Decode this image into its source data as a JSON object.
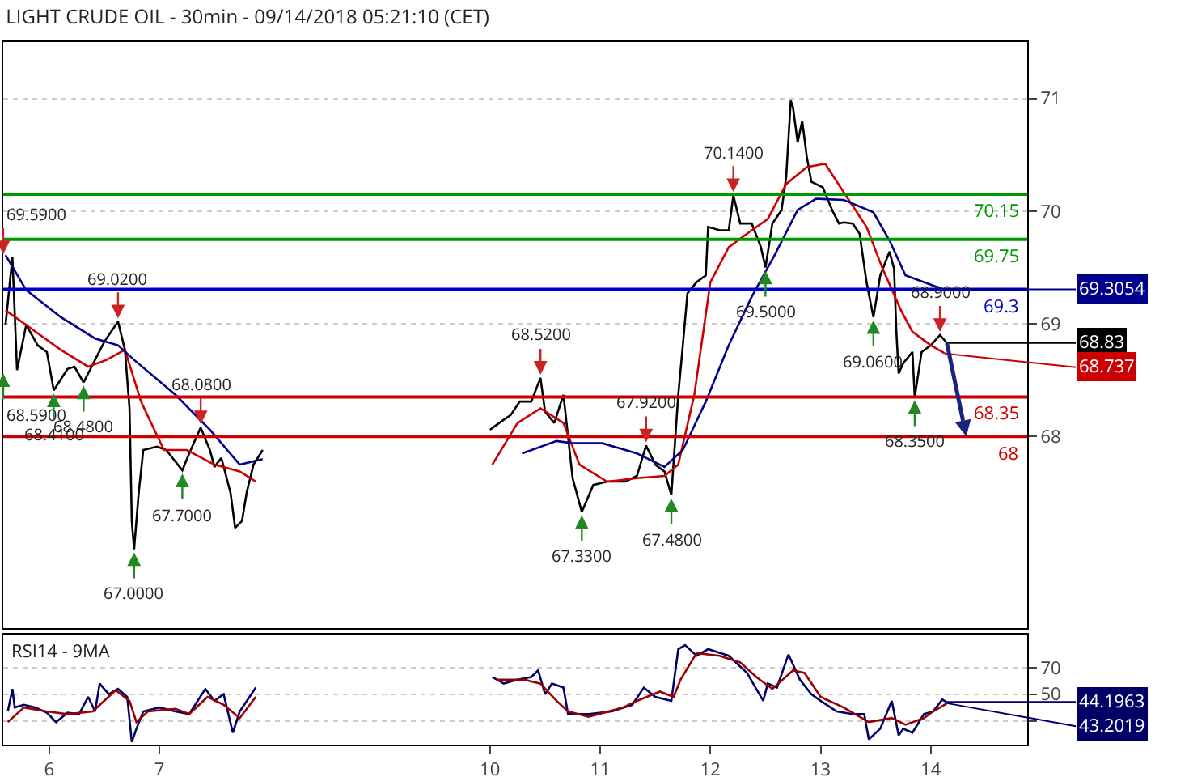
{
  "chart_data": [
    {
      "type": "line",
      "title": "LIGHT CRUDE OIL - 30min - 09/14/2018 05:21:10 (CET)",
      "xlim": [
        "2018-09-05T14:00",
        "2018-09-14T21:00"
      ],
      "ylim": [
        66.3,
        71.5
      ],
      "yticks": [
        68,
        69,
        70,
        71
      ],
      "tick_labels": "y",
      "grid": "y",
      "marker": "none",
      "line_style": "solid",
      "series": [
        {
          "color": "#000000",
          "x": [
            "2018-09-05T14:30",
            "2018-09-05T16:00",
            "2018-09-05T17:00",
            "2018-09-05T19:00",
            "2018-09-05T21:30",
            "2018-09-05T23:30",
            "2018-09-06T01:00",
            "2018-09-06T04:00",
            "2018-09-06T05:30",
            "2018-09-06T07:30",
            "2018-09-06T10:00",
            "2018-09-06T12:00",
            "2018-09-06T15:00",
            "2018-09-06T16:30",
            "2018-09-06T17:30",
            "2018-09-06T18:00",
            "2018-09-06T18:30",
            "2018-09-06T19:30",
            "2018-09-06T20:30",
            "2018-09-06T23:30",
            "2018-09-07T01:30",
            "2018-09-07T05:00",
            "2018-09-07T06:30",
            "2018-09-07T09:00",
            "2018-09-07T11:00",
            "2018-09-07T12:00",
            "2018-09-07T13:30",
            "2018-09-07T15:30",
            "2018-09-07T16:30",
            "2018-09-07T18:00",
            "2018-09-07T19:00",
            "2018-09-07T20:30",
            "2018-09-07T22:30",
            "2018-09-08T12:00",
            "2018-09-10T00:00",
            "2018-09-10T02:00",
            "2018-09-10T04:30",
            "2018-09-10T06:30",
            "2018-09-10T09:00",
            "2018-09-10T11:00",
            "2018-09-10T12:00",
            "2018-09-10T14:00",
            "2018-09-10T16:00",
            "2018-09-10T17:00",
            "2018-09-10T18:00",
            "2018-09-10T20:00",
            "2018-09-10T22:30",
            "2018-09-11T01:30",
            "2018-09-11T05:30",
            "2018-09-11T08:00",
            "2018-09-11T10:00",
            "2018-09-11T12:00",
            "2018-09-11T14:00",
            "2018-09-11T15:30",
            "2018-09-11T17:00",
            "2018-09-11T18:00",
            "2018-09-11T19:00",
            "2018-09-11T21:00",
            "2018-09-11T23:00",
            "2018-09-11T23:30",
            "2018-09-12T02:00",
            "2018-09-12T04:00",
            "2018-09-12T05:00",
            "2018-09-12T06:30",
            "2018-09-12T09:00",
            "2018-09-12T11:00",
            "2018-09-12T12:00",
            "2018-09-12T13:30",
            "2018-09-12T15:30",
            "2018-09-12T16:30",
            "2018-09-12T17:30",
            "2018-09-12T18:00",
            "2018-09-12T19:00",
            "2018-09-12T20:00",
            "2018-09-12T21:00",
            "2018-09-12T22:00",
            "2018-09-12T23:00",
            "2018-09-13T00:30",
            "2018-09-13T02:30",
            "2018-09-13T04:00",
            "2018-09-13T05:00",
            "2018-09-13T07:00",
            "2018-09-13T08:30",
            "2018-09-13T10:00",
            "2018-09-13T11:30",
            "2018-09-13T13:00",
            "2018-09-13T15:00",
            "2018-09-13T16:00",
            "2018-09-13T16:30",
            "2018-09-13T17:00",
            "2018-09-13T18:00",
            "2018-09-13T20:00",
            "2018-09-13T20:30",
            "2018-09-13T22:00",
            "2018-09-14T00:00",
            "2018-09-14T02:00",
            "2018-09-14T03:30"
          ],
          "values": [
            68.99,
            69.59,
            68.59,
            68.99,
            68.81,
            68.75,
            68.41,
            68.6,
            68.62,
            68.48,
            68.68,
            68.84,
            69.02,
            68.77,
            68.25,
            67.25,
            67.0,
            67.5,
            67.88,
            67.91,
            67.88,
            67.7,
            67.85,
            68.08,
            67.88,
            67.73,
            67.81,
            67.5,
            67.19,
            67.25,
            67.5,
            67.75,
            67.88,
            null,
            68.06,
            68.12,
            68.19,
            68.31,
            68.31,
            68.52,
            68.22,
            68.12,
            68.37,
            68.0,
            67.63,
            67.33,
            67.57,
            67.6,
            67.6,
            67.65,
            67.92,
            67.75,
            67.69,
            67.48,
            68.37,
            68.81,
            69.27,
            69.37,
            69.43,
            69.86,
            69.83,
            69.83,
            70.14,
            69.89,
            69.89,
            69.68,
            69.5,
            69.89,
            70.01,
            70.3,
            70.98,
            70.92,
            70.61,
            70.8,
            70.48,
            70.26,
            70.24,
            70.21,
            70.01,
            69.89,
            69.9,
            69.89,
            69.8,
            69.37,
            69.06,
            69.43,
            69.64,
            69.49,
            68.93,
            68.56,
            68.65,
            68.75,
            68.35,
            68.75,
            68.81,
            68.9,
            68.83
          ]
        },
        {
          "color": "#cc0000",
          "x": [
            "2018-09-05T14:30",
            "2018-09-05T19:00",
            "2018-09-06T02:30",
            "2018-09-06T08:30",
            "2018-09-06T12:30",
            "2018-09-06T16:30",
            "2018-09-06T20:00",
            "2018-09-07T01:00",
            "2018-09-07T06:00",
            "2018-09-07T12:00",
            "2018-09-07T17:30",
            "2018-09-07T21:00",
            "2018-09-08T12:00",
            "2018-09-10T00:30",
            "2018-09-10T06:00",
            "2018-09-10T11:00",
            "2018-09-10T16:00",
            "2018-09-10T19:30",
            "2018-09-11T01:30",
            "2018-09-11T08:00",
            "2018-09-11T14:00",
            "2018-09-11T17:00",
            "2018-09-11T20:30",
            "2018-09-12T00:00",
            "2018-09-12T04:00",
            "2018-09-12T09:00",
            "2018-09-12T12:30",
            "2018-09-12T16:30",
            "2018-09-12T21:00",
            "2018-09-13T01:00",
            "2018-09-13T05:00",
            "2018-09-13T10:00",
            "2018-09-13T13:30",
            "2018-09-13T17:30",
            "2018-09-13T20:00",
            "2018-09-14T00:00",
            "2018-09-14T03:00"
          ],
          "values": [
            69.12,
            68.99,
            68.77,
            68.62,
            68.68,
            68.77,
            68.31,
            67.88,
            67.88,
            67.75,
            67.69,
            67.6,
            null,
            67.75,
            68.12,
            68.25,
            68.12,
            67.75,
            67.6,
            67.63,
            67.65,
            67.75,
            68.37,
            69.37,
            69.68,
            69.83,
            69.93,
            70.24,
            70.39,
            70.42,
            70.17,
            69.86,
            69.49,
            69.12,
            68.93,
            68.81,
            68.74
          ]
        },
        {
          "color": "#00008b",
          "x": [
            "2018-09-05T14:30",
            "2018-09-05T19:00",
            "2018-09-06T02:30",
            "2018-09-06T10:00",
            "2018-09-06T15:00",
            "2018-09-06T18:30",
            "2018-09-07T03:30",
            "2018-09-07T11:00",
            "2018-09-07T17:30",
            "2018-09-07T22:30",
            "2018-09-08T12:00",
            "2018-09-10T07:00",
            "2018-09-10T14:30",
            "2018-09-10T18:00",
            "2018-09-11T00:30",
            "2018-09-11T08:00",
            "2018-09-11T14:00",
            "2018-09-11T18:00",
            "2018-09-11T23:00",
            "2018-09-12T04:00",
            "2018-09-12T09:00",
            "2018-09-12T14:00",
            "2018-09-12T19:00",
            "2018-09-12T23:00",
            "2018-09-13T05:00",
            "2018-09-13T11:30",
            "2018-09-13T15:00",
            "2018-09-13T18:30",
            "2018-09-14T02:30"
          ],
          "values": [
            69.61,
            69.3,
            69.06,
            68.87,
            68.81,
            68.68,
            68.37,
            68.06,
            67.75,
            67.8,
            null,
            67.85,
            67.96,
            67.94,
            67.94,
            67.85,
            67.73,
            67.88,
            68.31,
            68.81,
            69.24,
            69.61,
            70.01,
            70.11,
            70.1,
            69.99,
            69.74,
            69.43,
            69.31
          ]
        }
      ],
      "ref_lines": [
        {
          "axis": "y",
          "value": 70.15,
          "label": "70.15",
          "color": "#009900"
        },
        {
          "axis": "y",
          "value": 69.75,
          "label": "69.75",
          "color": "#009900"
        },
        {
          "axis": "y",
          "value": 69.3054,
          "label": "69.3",
          "color": "#0000cc"
        },
        {
          "axis": "y",
          "value": 68.35,
          "label": "68.35",
          "color": "#cc0000"
        },
        {
          "axis": "y",
          "value": 68,
          "label": "68",
          "color": "#cc0000"
        }
      ],
      "annotations": [
        {
          "text": "69.5900",
          "x": "2018-09-05T16:00",
          "y": 69.59
        },
        {
          "text": "68.5900",
          "x": "2018-09-05T17:00",
          "y": 68.59
        },
        {
          "text": "68.4100",
          "x": "2018-09-06T01:00",
          "y": 68.41
        },
        {
          "text": "68.4800",
          "x": "2018-09-06T07:30",
          "y": 68.48
        },
        {
          "text": "69.0200",
          "x": "2018-09-06T15:00",
          "y": 69.02
        },
        {
          "text": "67.0000",
          "x": "2018-09-06T18:30",
          "y": 67.0
        },
        {
          "text": "67.7000",
          "x": "2018-09-07T05:00",
          "y": 67.7
        },
        {
          "text": "68.0800",
          "x": "2018-09-07T09:00",
          "y": 68.08
        },
        {
          "text": "68.5200",
          "x": "2018-09-10T11:00",
          "y": 68.52
        },
        {
          "text": "67.3300",
          "x": "2018-09-10T20:00",
          "y": 67.33
        },
        {
          "text": "67.9200",
          "x": "2018-09-11T10:00",
          "y": 67.92
        },
        {
          "text": "67.4800",
          "x": "2018-09-11T15:30",
          "y": 67.48
        },
        {
          "text": "70.1400",
          "x": "2018-09-12T05:00",
          "y": 70.14
        },
        {
          "text": "69.5000",
          "x": "2018-09-12T12:00",
          "y": 69.5
        },
        {
          "text": "69.0600",
          "x": "2018-09-13T11:30",
          "y": 69.06
        },
        {
          "text": "68.3500",
          "x": "2018-09-13T20:30",
          "y": 68.35
        },
        {
          "text": "68.9000",
          "x": "2018-09-14T02:00",
          "y": 68.9
        },
        {
          "text": "69.3054",
          "x": "2018-09-14T02:30",
          "y": 69.3054
        },
        {
          "text": "68.83",
          "x": "2018-09-14T03:30",
          "y": 68.83
        },
        {
          "text": "68.737",
          "x": "2018-09-14T03:00",
          "y": 68.737
        }
      ]
    },
    {
      "type": "line",
      "title": "RSI14 - 9MA",
      "xlim": [
        "2018-09-05T14:00",
        "2018-09-14T21:00"
      ],
      "xticks": [
        {
          "value": "2018-09-06",
          "label": "6"
        },
        {
          "value": "2018-09-07",
          "label": "7"
        },
        {
          "value": "2018-09-10",
          "label": "10"
        },
        {
          "value": "2018-09-11",
          "label": "11"
        },
        {
          "value": "2018-09-12",
          "label": "12"
        },
        {
          "value": "2018-09-13",
          "label": "13"
        },
        {
          "value": "2018-09-14",
          "label": "14"
        }
      ],
      "ylim": [
        12,
        95
      ],
      "yticks": [
        {
          "value": 30,
          "label": null
        },
        50,
        70
      ],
      "grid": "y",
      "marker": "none",
      "line_style": "solid",
      "series": [
        {
          "color": "#000066",
          "x": [
            "2018-09-05T15:00",
            "2018-09-05T16:00",
            "2018-09-05T16:30",
            "2018-09-05T18:30",
            "2018-09-05T21:00",
            "2018-09-05T23:30",
            "2018-09-06T01:30",
            "2018-09-06T04:00",
            "2018-09-06T06:30",
            "2018-09-06T08:30",
            "2018-09-06T10:00",
            "2018-09-06T11:00",
            "2018-09-06T13:00",
            "2018-09-06T15:00",
            "2018-09-06T17:00",
            "2018-09-06T18:00",
            "2018-09-06T19:00",
            "2018-09-06T20:30",
            "2018-09-07T00:00",
            "2018-09-07T03:30",
            "2018-09-07T06:30",
            "2018-09-07T10:00",
            "2018-09-07T12:00",
            "2018-09-07T14:00",
            "2018-09-07T16:00",
            "2018-09-07T17:30",
            "2018-09-07T21:00",
            "2018-09-08T12:00",
            "2018-09-10T00:30",
            "2018-09-10T03:00",
            "2018-09-10T06:00",
            "2018-09-10T09:00",
            "2018-09-10T10:30",
            "2018-09-10T12:00",
            "2018-09-10T13:30",
            "2018-09-10T16:00",
            "2018-09-10T17:00",
            "2018-09-10T19:30",
            "2018-09-10T21:30",
            "2018-09-11T02:30",
            "2018-09-11T07:00",
            "2018-09-11T09:30",
            "2018-09-11T12:00",
            "2018-09-11T15:30",
            "2018-09-11T17:00",
            "2018-09-11T18:30",
            "2018-09-11T21:00",
            "2018-09-11T23:30",
            "2018-09-12T04:00",
            "2018-09-12T08:00",
            "2018-09-12T11:30",
            "2018-09-12T12:30",
            "2018-09-12T14:30",
            "2018-09-12T17:00",
            "2018-09-12T19:30",
            "2018-09-12T22:00",
            "2018-09-13T00:00",
            "2018-09-13T03:30",
            "2018-09-13T07:00",
            "2018-09-13T09:30",
            "2018-09-13T10:30",
            "2018-09-13T13:00",
            "2018-09-13T15:30",
            "2018-09-13T17:00",
            "2018-09-13T18:00",
            "2018-09-13T20:00",
            "2018-09-13T22:30",
            "2018-09-14T00:30",
            "2018-09-14T02:30",
            "2018-09-14T03:30"
          ],
          "values": [
            37,
            54,
            40,
            42,
            40,
            36,
            29,
            36,
            35,
            48,
            37,
            58,
            50,
            54,
            48,
            14,
            24,
            37,
            40,
            37,
            35,
            54,
            45,
            50,
            21,
            37,
            55,
            null,
            63,
            58,
            61,
            63,
            68,
            50,
            58,
            55,
            35,
            35,
            35,
            37,
            42,
            55,
            48,
            45,
            84,
            87,
            79,
            84,
            79,
            66,
            45,
            58,
            55,
            80,
            61,
            50,
            45,
            37,
            35,
            35,
            16,
            24,
            45,
            19,
            24,
            21,
            35,
            37,
            46,
            44
          ]
        },
        {
          "color": "#990000",
          "x": [
            "2018-09-05T15:00",
            "2018-09-05T18:30",
            "2018-09-05T23:30",
            "2018-09-06T04:00",
            "2018-09-06T09:30",
            "2018-09-06T14:30",
            "2018-09-06T17:30",
            "2018-09-06T19:00",
            "2018-09-06T21:30",
            "2018-09-07T03:30",
            "2018-09-07T06:30",
            "2018-09-07T10:30",
            "2018-09-07T14:00",
            "2018-09-07T17:30",
            "2018-09-07T21:00",
            "2018-09-08T12:00",
            "2018-09-10T01:30",
            "2018-09-10T07:30",
            "2018-09-10T11:00",
            "2018-09-10T14:30",
            "2018-09-10T17:00",
            "2018-09-10T21:30",
            "2018-09-11T05:00",
            "2018-09-11T08:00",
            "2018-09-11T13:00",
            "2018-09-11T16:00",
            "2018-09-11T17:30",
            "2018-09-11T21:00",
            "2018-09-12T02:00",
            "2018-09-12T06:30",
            "2018-09-12T10:00",
            "2018-09-12T13:30",
            "2018-09-12T18:00",
            "2018-09-12T20:30",
            "2018-09-13T00:00",
            "2018-09-13T05:00",
            "2018-09-13T10:30",
            "2018-09-13T15:30",
            "2018-09-13T18:30",
            "2018-09-13T22:30",
            "2018-09-14T00:30",
            "2018-09-14T03:30"
          ],
          "values": [
            29,
            40,
            37,
            35,
            37,
            53,
            45,
            29,
            37,
            39,
            35,
            48,
            42,
            32,
            48,
            null,
            61,
            61,
            58,
            45,
            37,
            33,
            40,
            45,
            52,
            48,
            61,
            81,
            79,
            74,
            63,
            54,
            68,
            66,
            48,
            40,
            29,
            32,
            27,
            32,
            37,
            43
          ]
        }
      ],
      "annotations": [
        {
          "text": "44.1963",
          "x": "2018-09-14T03:30",
          "y": 44.1963
        },
        {
          "text": "43.2019",
          "x": "2018-09-14T03:30",
          "y": 43.2019
        }
      ]
    }
  ]
}
